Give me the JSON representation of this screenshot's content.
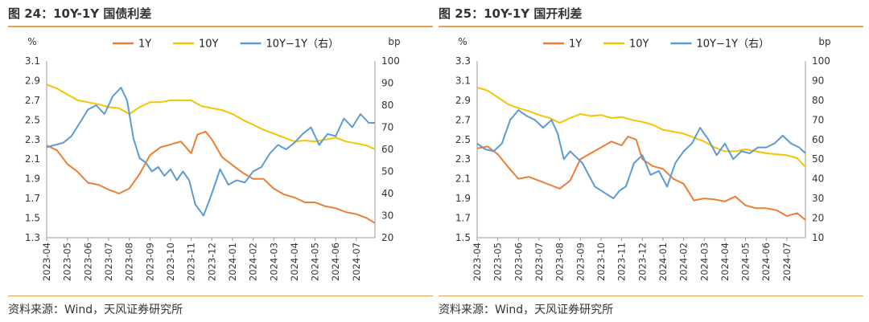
{
  "panels": [
    {
      "title": "图 24：10Y-1Y 国债利差",
      "source": "资料来源：Wind，天风证券研究所"
    },
    {
      "title": "图 25：10Y-1Y 国开利差",
      "source": "资料来源：Wind，天风证券研究所"
    }
  ],
  "colors": {
    "one_year": "#ed7d31",
    "ten_year": "#f5c400",
    "spread": "#5b9bd5",
    "accent_line": "#e8a050"
  },
  "chart_data": [
    {
      "type": "line",
      "title": "",
      "ylabel_left": "%",
      "ylabel_right": "bp",
      "left_ticks": [
        "3.1",
        "2.9",
        "2.7",
        "2.5",
        "2.3",
        "2.1",
        "1.9",
        "1.7",
        "1.5",
        "1.3"
      ],
      "right_ticks": [
        "100",
        "90",
        "80",
        "70",
        "60",
        "50",
        "40",
        "30",
        "20"
      ],
      "ylim_left": [
        1.3,
        3.1
      ],
      "ylim_right": [
        20,
        100
      ],
      "x_ticks": [
        "2023-04",
        "2023-05",
        "2023-06",
        "2023-07",
        "2023-08",
        "2023-09",
        "2023-10",
        "2023-11",
        "2023-12",
        "2024-01",
        "2024-02",
        "2024-03",
        "2024-04",
        "2024-05",
        "2024-06",
        "2024-07"
      ],
      "x_range": [
        0,
        15.9
      ],
      "legend_position": "top-center",
      "series": [
        {
          "name": "1Y",
          "axis": "left",
          "color_key": "one_year",
          "x": [
            0,
            0.5,
            1,
            1.5,
            2,
            2.5,
            3,
            3.5,
            4,
            4.5,
            5,
            5.5,
            6,
            6.5,
            7,
            7.3,
            7.7,
            8,
            8.5,
            9,
            9.5,
            10,
            10.5,
            11,
            11.5,
            12,
            12.5,
            13,
            13.5,
            14,
            14.5,
            15,
            15.5,
            15.9
          ],
          "y": [
            2.24,
            2.19,
            2.05,
            1.97,
            1.86,
            1.84,
            1.79,
            1.75,
            1.8,
            1.95,
            2.14,
            2.22,
            2.25,
            2.28,
            2.16,
            2.35,
            2.38,
            2.3,
            2.12,
            2.04,
            1.96,
            1.9,
            1.9,
            1.8,
            1.74,
            1.71,
            1.66,
            1.66,
            1.62,
            1.6,
            1.56,
            1.54,
            1.5,
            1.45
          ]
        },
        {
          "name": "10Y",
          "axis": "left",
          "color_key": "ten_year",
          "x": [
            0,
            0.5,
            1,
            1.5,
            2,
            2.5,
            3,
            3.5,
            4,
            4.5,
            5,
            5.5,
            6,
            6.5,
            7,
            7.5,
            8,
            8.5,
            9,
            9.5,
            10,
            10.5,
            11,
            11.5,
            12,
            12.5,
            13,
            13.5,
            14,
            14.5,
            15,
            15.5,
            15.9
          ],
          "y": [
            2.86,
            2.82,
            2.76,
            2.7,
            2.68,
            2.66,
            2.63,
            2.62,
            2.56,
            2.63,
            2.68,
            2.68,
            2.7,
            2.7,
            2.7,
            2.64,
            2.62,
            2.6,
            2.56,
            2.5,
            2.45,
            2.4,
            2.36,
            2.32,
            2.28,
            2.29,
            2.28,
            2.3,
            2.32,
            2.28,
            2.26,
            2.24,
            2.2
          ]
        },
        {
          "name": "10Y−1Y（右）",
          "axis": "right",
          "color_key": "spread",
          "x": [
            0,
            0.4,
            0.8,
            1.2,
            1.6,
            2,
            2.4,
            2.8,
            3.2,
            3.6,
            3.9,
            4.2,
            4.5,
            4.8,
            5.1,
            5.4,
            5.7,
            6,
            6.3,
            6.6,
            6.9,
            7.2,
            7.6,
            8,
            8.4,
            8.8,
            9.2,
            9.6,
            10,
            10.4,
            10.8,
            11.2,
            11.6,
            12,
            12.4,
            12.8,
            13.2,
            13.6,
            14,
            14.4,
            14.8,
            15.2,
            15.6,
            15.9
          ],
          "y": [
            61,
            62,
            63,
            66,
            72,
            78,
            80,
            76,
            84,
            88,
            82,
            65,
            56,
            54,
            50,
            52,
            48,
            51,
            46,
            50,
            46,
            35,
            30,
            40,
            51,
            44,
            46,
            45,
            50,
            52,
            58,
            62,
            60,
            63,
            67,
            70,
            62,
            67,
            66,
            74,
            70,
            76,
            72,
            72
          ]
        }
      ]
    },
    {
      "type": "line",
      "title": "",
      "ylabel_left": "%",
      "ylabel_right": "bp",
      "left_ticks": [
        "3.3",
        "3.1",
        "2.9",
        "2.7",
        "2.5",
        "2.3",
        "2.1",
        "1.9",
        "1.7",
        "1.5"
      ],
      "right_ticks": [
        "100",
        "90",
        "80",
        "70",
        "60",
        "50",
        "40",
        "30",
        "20",
        "10"
      ],
      "ylim_left": [
        1.5,
        3.3
      ],
      "ylim_right": [
        10,
        100
      ],
      "x_ticks": [
        "2023-04",
        "2023-05",
        "2023-06",
        "2023-07",
        "2023-08",
        "2023-09",
        "2023-10",
        "2023-11",
        "2023-12",
        "2024-01",
        "2024-02",
        "2024-03",
        "2024-04",
        "2024-05",
        "2024-06",
        "2024-07"
      ],
      "x_range": [
        0,
        15.9
      ],
      "legend_position": "top-center",
      "series": [
        {
          "name": "1Y",
          "axis": "left",
          "color_key": "one_year",
          "x": [
            0,
            0.5,
            1,
            1.5,
            2,
            2.5,
            3,
            3.5,
            4,
            4.5,
            5,
            5.5,
            6,
            6.5,
            7,
            7.3,
            7.7,
            8,
            8.5,
            9,
            9.5,
            10,
            10.5,
            11,
            11.5,
            12,
            12.5,
            13,
            13.5,
            14,
            14.5,
            15,
            15.5,
            15.9
          ],
          "y": [
            2.41,
            2.43,
            2.35,
            2.22,
            2.1,
            2.12,
            2.08,
            2.04,
            2.0,
            2.08,
            2.3,
            2.36,
            2.42,
            2.48,
            2.44,
            2.53,
            2.5,
            2.3,
            2.23,
            2.2,
            2.1,
            2.05,
            1.88,
            1.9,
            1.89,
            1.87,
            1.92,
            1.83,
            1.8,
            1.8,
            1.78,
            1.72,
            1.75,
            1.68
          ]
        },
        {
          "name": "10Y",
          "axis": "left",
          "color_key": "ten_year",
          "x": [
            0,
            0.5,
            1,
            1.5,
            2,
            2.5,
            3,
            3.5,
            4,
            4.5,
            5,
            5.5,
            6,
            6.5,
            7,
            7.5,
            8,
            8.5,
            9,
            9.5,
            10,
            10.5,
            11,
            11.5,
            12,
            12.5,
            13,
            13.5,
            14,
            14.5,
            15,
            15.5,
            15.9
          ],
          "y": [
            3.03,
            3.0,
            2.93,
            2.86,
            2.82,
            2.79,
            2.75,
            2.72,
            2.67,
            2.72,
            2.76,
            2.74,
            2.75,
            2.72,
            2.73,
            2.7,
            2.68,
            2.65,
            2.6,
            2.58,
            2.56,
            2.52,
            2.48,
            2.42,
            2.38,
            2.38,
            2.4,
            2.38,
            2.36,
            2.35,
            2.34,
            2.31,
            2.22
          ]
        },
        {
          "name": "10Y−1Y（右）",
          "axis": "right",
          "color_key": "spread",
          "x": [
            0,
            0.4,
            0.8,
            1.2,
            1.6,
            2,
            2.4,
            2.8,
            3.2,
            3.6,
            3.9,
            4.2,
            4.5,
            4.8,
            5.1,
            5.4,
            5.7,
            6,
            6.3,
            6.6,
            6.9,
            7.2,
            7.6,
            8,
            8.4,
            8.8,
            9.2,
            9.6,
            10,
            10.4,
            10.8,
            11.2,
            11.6,
            12,
            12.4,
            12.8,
            13.2,
            13.6,
            14,
            14.4,
            14.8,
            15.2,
            15.6,
            15.9
          ],
          "y": [
            58,
            55,
            54,
            58,
            70,
            75,
            72,
            70,
            66,
            70,
            63,
            50,
            54,
            51,
            48,
            42,
            36,
            34,
            32,
            30,
            34,
            36,
            48,
            52,
            42,
            44,
            36,
            48,
            54,
            58,
            66,
            60,
            52,
            58,
            50,
            54,
            53,
            56,
            56,
            58,
            62,
            58,
            56,
            53
          ]
        }
      ]
    }
  ],
  "legend_labels": {
    "one_year": "1Y",
    "ten_year": "10Y",
    "spread": "10Y−1Y（右）"
  }
}
